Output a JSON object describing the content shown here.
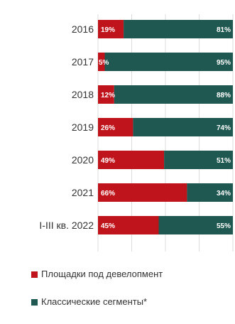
{
  "chart_data": {
    "type": "bar",
    "orientation": "horizontal",
    "stacked": true,
    "percent": true,
    "categories": [
      "2016",
      "2017",
      "2018",
      "2019",
      "2020",
      "2021",
      "I-III кв. 2022"
    ],
    "series": [
      {
        "name": "Площадки под девелопмент",
        "color": "#c0141c",
        "values": [
          19,
          5,
          12,
          26,
          49,
          66,
          45
        ],
        "labels": [
          "19%",
          "5%",
          "12%",
          "26%",
          "49%",
          "66%",
          "45%"
        ]
      },
      {
        "name": "Классические сегменты*",
        "color": "#1f5751",
        "values": [
          81,
          95,
          88,
          74,
          51,
          34,
          55
        ],
        "labels": [
          "81%",
          "95%",
          "88%",
          "74%",
          "51%",
          "34%",
          "55%"
        ]
      }
    ],
    "xlim": [
      0,
      100
    ],
    "grid": true,
    "legend_position": "bottom-left"
  }
}
